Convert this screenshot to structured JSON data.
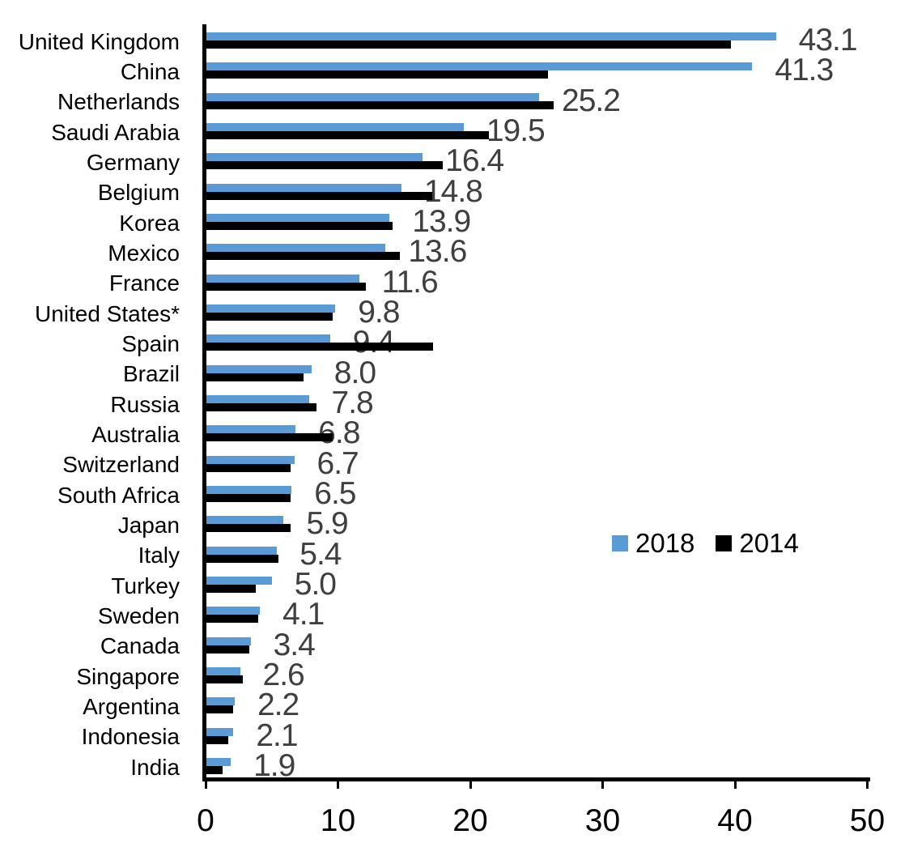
{
  "chart_data": {
    "type": "bar",
    "orientation": "horizontal",
    "title": "",
    "xlabel": "",
    "ylabel": "",
    "xlim": [
      0,
      50
    ],
    "x_ticks": [
      "0",
      "10",
      "20",
      "30",
      "40",
      "50"
    ],
    "x_tick_values": [
      0,
      10,
      20,
      30,
      40,
      50
    ],
    "grid": false,
    "categories": [
      "United Kingdom",
      "China",
      "Netherlands",
      "Saudi Arabia",
      "Germany",
      "Belgium",
      "Korea",
      "Mexico",
      "France",
      "United States*",
      "Spain",
      "Brazil",
      "Russia",
      "Australia",
      "Switzerland",
      "South Africa",
      "Japan",
      "Italy",
      "Turkey",
      "Sweden",
      "Canada",
      "Singapore",
      "Argentina",
      "Indonesia",
      "India"
    ],
    "series": [
      {
        "name": "2018",
        "color": "#5B9BD5",
        "values": [
          43.1,
          41.3,
          25.2,
          19.5,
          16.4,
          14.8,
          13.9,
          13.6,
          11.6,
          9.8,
          9.4,
          8.0,
          7.8,
          6.8,
          6.7,
          6.5,
          5.9,
          5.4,
          5.0,
          4.1,
          3.4,
          2.6,
          2.2,
          2.1,
          1.9
        ]
      },
      {
        "name": "2014",
        "color": "#000000",
        "values": [
          39.7,
          25.9,
          26.3,
          21.4,
          17.9,
          17.1,
          14.1,
          14.7,
          12.1,
          9.6,
          17.2,
          7.4,
          8.4,
          9.6,
          6.4,
          6.4,
          6.4,
          5.5,
          3.8,
          4.0,
          3.3,
          2.8,
          2.1,
          1.7,
          1.3
        ]
      }
    ],
    "data_labels": [
      "43.1",
      "41.3",
      "25.2",
      "19.5",
      "16.4",
      "14.8",
      "13.9",
      "13.6",
      "11.6",
      "9.8",
      "9.4",
      "8.0",
      "7.8",
      "6.8",
      "6.7",
      "6.5",
      "5.9",
      "5.4",
      "5.0",
      "4.1",
      "3.4",
      "2.6",
      "2.2",
      "2.1",
      "1.9"
    ],
    "data_label_series": "2018",
    "data_label_color": "#3F3F3F",
    "legend_position": "middle-right"
  },
  "legend": {
    "items": [
      {
        "label": "2018",
        "color": "#5B9BD5"
      },
      {
        "label": "2014",
        "color": "#000000"
      }
    ]
  },
  "colors": {
    "series_2018": "#5B9BD5",
    "series_2014": "#000000",
    "value_label": "#3F3F3F",
    "axis": "#000000",
    "background": "#FFFFFF"
  }
}
